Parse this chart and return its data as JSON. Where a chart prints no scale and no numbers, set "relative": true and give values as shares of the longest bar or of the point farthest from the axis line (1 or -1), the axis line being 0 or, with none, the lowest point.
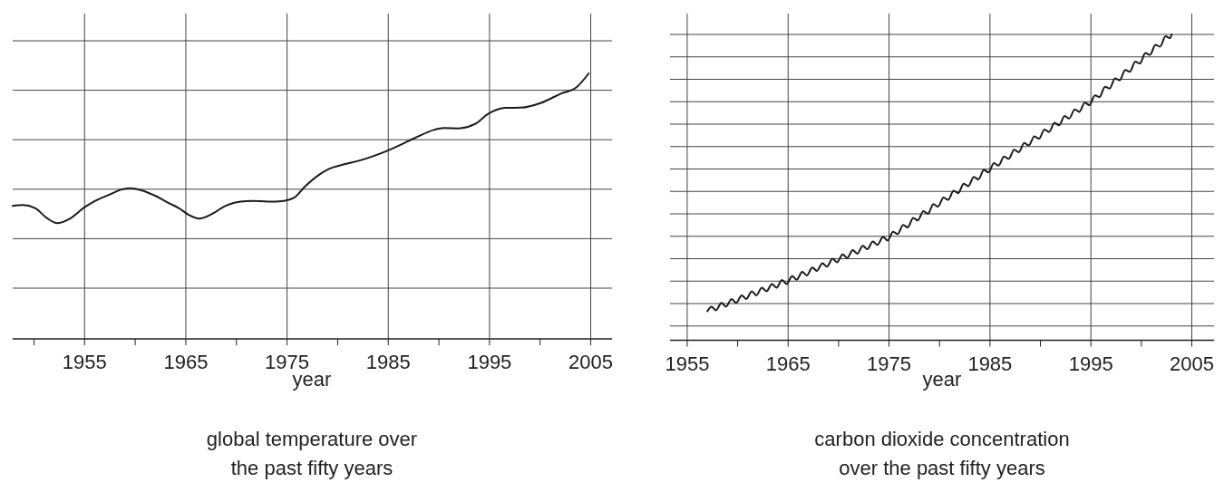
{
  "chart_data": [
    {
      "type": "line",
      "title": "global temperature over the past fifty years",
      "xlabel": "year",
      "relative": true,
      "grid": true,
      "line_style": "solid",
      "xlim": [
        1947.9,
        2007.1
      ],
      "xticks": [
        {
          "value": 1950,
          "label": null
        },
        1955,
        {
          "value": 1960,
          "label": null
        },
        1965,
        {
          "value": 1970,
          "label": null
        },
        1975,
        {
          "value": 1980,
          "label": null
        },
        1985,
        {
          "value": 1990,
          "label": null
        },
        1995,
        {
          "value": 2000,
          "label": null
        },
        2005
      ],
      "series": [
        {
          "color": "#1a1a1a",
          "x": [
            1947.9,
            1948.9,
            1950.1,
            1951.25,
            1952.3,
            1953.5,
            1955,
            1955.9,
            1957.5,
            1958.5,
            1959.5,
            1960.6,
            1962.2,
            1963.4,
            1964.3,
            1965.3,
            1966.3,
            1967.7,
            1968.8,
            1970.4,
            1971.6,
            1973.1,
            1974.7,
            1975.7,
            1976.8,
            1978.2,
            1979.2,
            1980.4,
            1982.1,
            1984.8,
            1987.6,
            1989.5,
            1990.5,
            1991.9,
            1993.6,
            1994.8,
            1996.6,
            1998.1,
            2000.1,
            2002,
            2003.6,
            2004.8
          ],
          "values": [
            0.501,
            0.504,
            0.493,
            0.456,
            0.436,
            0.452,
            0.496,
            0.517,
            0.544,
            0.561,
            0.567,
            0.56,
            0.535,
            0.51,
            0.493,
            0.467,
            0.453,
            0.473,
            0.499,
            0.517,
            0.52,
            0.517,
            0.52,
            0.532,
            0.575,
            0.619,
            0.641,
            0.655,
            0.671,
            0.707,
            0.756,
            0.787,
            0.794,
            0.793,
            0.81,
            0.846,
            0.87,
            0.871,
            0.889,
            0.923,
            0.948,
            1
          ]
        }
      ]
    },
    {
      "type": "line",
      "title": "carbon dioxide concentration over the past fifty years",
      "xlabel": "year",
      "relative": true,
      "grid": true,
      "line_style": "solid",
      "xlim": [
        1953.3,
        2007.2
      ],
      "xticks": [
        1955,
        {
          "value": 1960,
          "label": null
        },
        1965,
        {
          "value": 1970,
          "label": null
        },
        1975,
        {
          "value": 1980,
          "label": null
        },
        1985,
        {
          "value": 1990,
          "label": null
        },
        1995,
        {
          "value": 2000,
          "label": null
        },
        2005
      ],
      "series": [
        {
          "color": "#1a1a1a",
          "x": [
            1957,
            1957.4,
            1957.85,
            1958.4,
            1958.85,
            1959.4,
            1959.85,
            1960.4,
            1960.85,
            1961.4,
            1961.85,
            1962.4,
            1962.85,
            1963.4,
            1963.85,
            1964.4,
            1964.85,
            1965.4,
            1965.85,
            1966.4,
            1966.85,
            1967.4,
            1967.85,
            1968.4,
            1968.85,
            1969.4,
            1969.85,
            1970.4,
            1970.85,
            1971.4,
            1971.85,
            1972.4,
            1972.85,
            1973.4,
            1973.85,
            1974.4,
            1974.85,
            1975.4,
            1975.85,
            1976.4,
            1976.85,
            1977.4,
            1977.85,
            1978.4,
            1978.85,
            1979.4,
            1979.85,
            1980.4,
            1980.85,
            1981.4,
            1981.85,
            1982.4,
            1982.85,
            1983.4,
            1983.85,
            1984.4,
            1984.85,
            1985.4,
            1985.85,
            1986.4,
            1986.85,
            1987.4,
            1987.85,
            1988.4,
            1988.85,
            1989.4,
            1989.85,
            1990.4,
            1990.85,
            1991.4,
            1991.85,
            1992.4,
            1992.85,
            1993.4,
            1993.85,
            1994.4,
            1994.85,
            1995.4,
            1995.85,
            1996.4,
            1996.85,
            1997.4,
            1997.85,
            1998.4,
            1998.85,
            1999.4,
            1999.85,
            2000.4,
            2000.85,
            2001.4,
            2001.85,
            2002.4,
            2002.85,
            2003
          ],
          "values": [
            0.095,
            0.11,
            0.098,
            0.122,
            0.11,
            0.135,
            0.122,
            0.147,
            0.135,
            0.16,
            0.147,
            0.172,
            0.16,
            0.184,
            0.172,
            0.197,
            0.184,
            0.21,
            0.198,
            0.224,
            0.212,
            0.238,
            0.227,
            0.252,
            0.241,
            0.267,
            0.255,
            0.281,
            0.269,
            0.295,
            0.283,
            0.309,
            0.298,
            0.323,
            0.312,
            0.338,
            0.326,
            0.355,
            0.347,
            0.377,
            0.369,
            0.4,
            0.392,
            0.422,
            0.414,
            0.445,
            0.437,
            0.467,
            0.459,
            0.489,
            0.481,
            0.512,
            0.504,
            0.534,
            0.526,
            0.557,
            0.549,
            0.579,
            0.571,
            0.601,
            0.593,
            0.623,
            0.615,
            0.645,
            0.637,
            0.667,
            0.659,
            0.689,
            0.681,
            0.711,
            0.703,
            0.733,
            0.725,
            0.755,
            0.747,
            0.777,
            0.769,
            0.801,
            0.795,
            0.829,
            0.823,
            0.856,
            0.85,
            0.884,
            0.878,
            0.911,
            0.905,
            0.939,
            0.933,
            0.966,
            0.96,
            0.994,
            0.988,
            1
          ]
        }
      ]
    }
  ]
}
